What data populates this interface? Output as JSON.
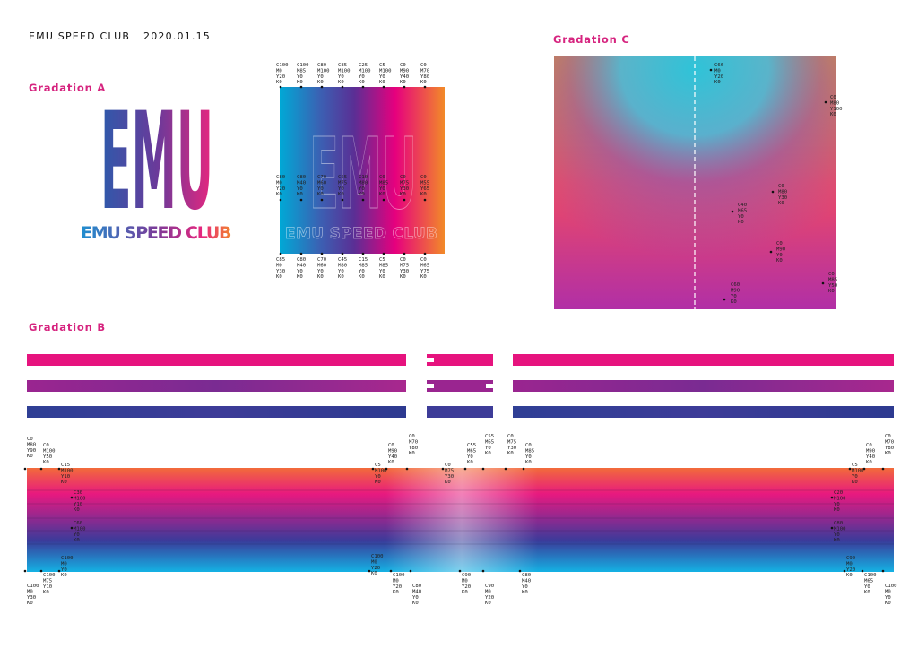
{
  "header": {
    "brand": "EMU SPEED CLUB",
    "date": "2020.01.15"
  },
  "gradation_a": {
    "title": "Gradation A",
    "logo_letters": "EMU",
    "logo_text": "EMU SPEED CLUB",
    "swatch_text": "EMU SPEED CLUB",
    "top": [
      [
        "C100",
        "M0",
        "Y20",
        "K0"
      ],
      [
        "C100",
        "M85",
        "Y0",
        "K0"
      ],
      [
        "C80",
        "M100",
        "Y0",
        "K0"
      ],
      [
        "C85",
        "M100",
        "Y0",
        "K0"
      ],
      [
        "C25",
        "M100",
        "Y0",
        "K0"
      ],
      [
        "C5",
        "M100",
        "Y0",
        "K0"
      ],
      [
        "C0",
        "M90",
        "Y40",
        "K0"
      ],
      [
        "C0",
        "M70",
        "Y80",
        "K0"
      ]
    ],
    "middle": [
      [
        "C80",
        "M0",
        "Y20",
        "K0"
      ],
      [
        "C80",
        "M40",
        "Y0",
        "K0"
      ],
      [
        "C70",
        "M60",
        "Y0",
        "K0"
      ],
      [
        "C55",
        "M75",
        "Y0",
        "K0"
      ],
      [
        "C10",
        "M80",
        "Y0",
        "K0"
      ],
      [
        "C0",
        "M85",
        "Y0",
        "K0"
      ],
      [
        "C0",
        "M75",
        "Y30",
        "K0"
      ],
      [
        "C0",
        "M55",
        "Y65",
        "K0"
      ]
    ],
    "bottom": [
      [
        "C85",
        "M0",
        "Y30",
        "K0"
      ],
      [
        "C80",
        "M40",
        "Y0",
        "K0"
      ],
      [
        "C70",
        "M60",
        "Y0",
        "K0"
      ],
      [
        "C45",
        "M80",
        "Y0",
        "K0"
      ],
      [
        "C15",
        "M85",
        "Y0",
        "K0"
      ],
      [
        "C5",
        "M85",
        "Y0",
        "K0"
      ],
      [
        "C0",
        "M75",
        "Y30",
        "K0"
      ],
      [
        "C0",
        "M65",
        "Y75",
        "K0"
      ]
    ]
  },
  "gradation_c": {
    "title": "Gradation C",
    "points": [
      [
        "C66",
        "M0",
        "Y20",
        "K0"
      ],
      [
        "C0",
        "M80",
        "Y100",
        "K0"
      ],
      [
        "C0",
        "M80",
        "Y30",
        "K0"
      ],
      [
        "C40",
        "M65",
        "Y0",
        "K0"
      ],
      [
        "C0",
        "M90",
        "Y0",
        "K0"
      ],
      [
        "C0",
        "M85",
        "Y50",
        "K0"
      ],
      [
        "C60",
        "M90",
        "Y0",
        "K0"
      ]
    ]
  },
  "gradation_b": {
    "title": "Gradation B",
    "left_top": [
      [
        "C0",
        "M80",
        "Y90",
        "K0"
      ],
      [
        "C0",
        "M100",
        "Y50",
        "K0"
      ],
      [
        "C15",
        "M100",
        "Y10",
        "K0"
      ]
    ],
    "left_mid": [
      [
        "C30",
        "M100",
        "Y10",
        "K0"
      ],
      [
        "C60",
        "M100",
        "Y0",
        "K0"
      ]
    ],
    "left_bottom": [
      [
        "C100",
        "M0",
        "Y30",
        "K0"
      ],
      [
        "C100",
        "M75",
        "Y10",
        "K0"
      ],
      [
        "C100",
        "M0",
        "Y0",
        "K0"
      ]
    ],
    "center_top": [
      [
        "C5",
        "M100",
        "Y0",
        "K0"
      ],
      [
        "C0",
        "M90",
        "Y40",
        "K0"
      ],
      [
        "C0",
        "M70",
        "Y80",
        "K0"
      ],
      [
        "C0",
        "M75",
        "Y30",
        "K0"
      ],
      [
        "C55",
        "M65",
        "Y0",
        "K0"
      ],
      [
        "C55",
        "M65",
        "Y0",
        "K0"
      ],
      [
        "C0",
        "M75",
        "Y30",
        "K0"
      ],
      [
        "C0",
        "M85",
        "Y0",
        "K0"
      ]
    ],
    "center_bottom": [
      [
        "C100",
        "M0",
        "Y20",
        "K0"
      ],
      [
        "C100",
        "M0",
        "Y20",
        "K0"
      ],
      [
        "C80",
        "M40",
        "Y0",
        "K0"
      ],
      [
        "C90",
        "M0",
        "Y20",
        "K0"
      ],
      [
        "C90",
        "M0",
        "Y20",
        "K0"
      ],
      [
        "C80",
        "M40",
        "Y0",
        "K0"
      ]
    ],
    "right_top": [
      [
        "C0",
        "M90",
        "Y40",
        "K0"
      ],
      [
        "C0",
        "M70",
        "Y80",
        "K0"
      ],
      [
        "C5",
        "M100",
        "Y0",
        "K0"
      ]
    ],
    "right_mid": [
      [
        "C20",
        "M100",
        "Y0",
        "K0"
      ],
      [
        "C80",
        "M100",
        "Y0",
        "K0"
      ]
    ],
    "right_bottom": [
      [
        "C90",
        "M0",
        "Y20",
        "K0"
      ],
      [
        "C100",
        "M65",
        "Y0",
        "K0"
      ],
      [
        "C100",
        "M0",
        "Y0",
        "K0"
      ]
    ]
  }
}
